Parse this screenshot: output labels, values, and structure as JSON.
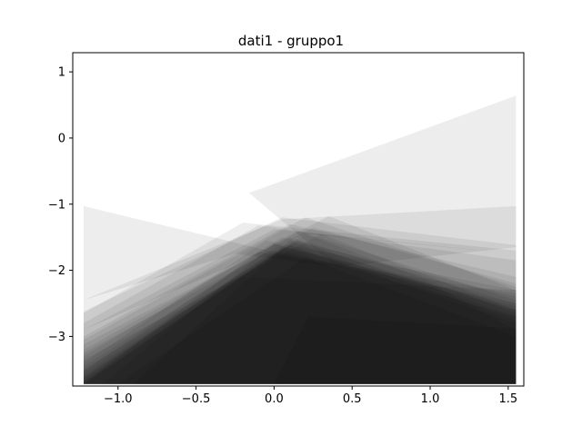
{
  "chart_data": {
    "type": "area",
    "title": "dati1 - gruppo1",
    "xlabel": "",
    "ylabel": "",
    "xlim": [
      -1.29,
      1.6
    ],
    "ylim": [
      -3.75,
      1.29
    ],
    "xticks": [
      -1.0,
      -0.5,
      0.0,
      0.5,
      1.0,
      1.5
    ],
    "xtick_labels": [
      "−1.0",
      "−0.5",
      "0.0",
      "0.5",
      "1.0",
      "1.5"
    ],
    "yticks": [
      1,
      0,
      -1,
      -2,
      -3
    ],
    "ytick_labels": [
      "1",
      "0",
      "−1",
      "−2",
      "−3"
    ],
    "grid": false,
    "fill_color": "#000000",
    "fill_opacity": 0.07,
    "polygons": [
      [
        [
          -0.16,
          -0.83
        ],
        [
          1.55,
          0.64
        ],
        [
          1.55,
          -1.65
        ],
        [
          0.4,
          -1.95
        ]
      ],
      [
        [
          -1.22,
          -1.03
        ],
        [
          0.4,
          -1.95
        ],
        [
          -0.25,
          -1.75
        ],
        [
          -1.22,
          -2.45
        ]
      ],
      [
        [
          -1.22,
          -2.45
        ],
        [
          0.05,
          -1.23
        ],
        [
          1.55,
          -1.03
        ],
        [
          1.55,
          -1.75
        ],
        [
          0.2,
          -1.45
        ],
        [
          -1.22,
          -2.9
        ]
      ],
      [
        [
          -1.22,
          -2.62
        ],
        [
          0.05,
          -1.2
        ],
        [
          1.55,
          -1.62
        ],
        [
          1.55,
          -3.72
        ],
        [
          -1.22,
          -3.72
        ]
      ],
      [
        [
          -1.22,
          -2.65
        ],
        [
          -0.2,
          -1.28
        ],
        [
          1.55,
          -1.7
        ],
        [
          1.55,
          -3.72
        ],
        [
          -1.22,
          -3.72
        ]
      ],
      [
        [
          -1.22,
          -2.8
        ],
        [
          -0.1,
          -1.32
        ],
        [
          1.55,
          -1.85
        ],
        [
          1.55,
          -3.72
        ],
        [
          -1.22,
          -3.72
        ]
      ],
      [
        [
          -1.22,
          -2.9
        ],
        [
          0.0,
          -1.38
        ],
        [
          1.55,
          -1.75
        ],
        [
          1.55,
          -3.72
        ],
        [
          -1.22,
          -3.72
        ]
      ],
      [
        [
          -1.22,
          -3.0
        ],
        [
          0.1,
          -1.3
        ],
        [
          1.55,
          -2.1
        ],
        [
          1.55,
          -3.72
        ],
        [
          -1.22,
          -3.72
        ]
      ],
      [
        [
          -1.22,
          -3.05
        ],
        [
          0.2,
          -1.2
        ],
        [
          1.55,
          -2.25
        ],
        [
          1.55,
          -3.72
        ],
        [
          -1.22,
          -3.72
        ]
      ],
      [
        [
          -1.22,
          -3.12
        ],
        [
          0.35,
          -1.18
        ],
        [
          1.55,
          -2.3
        ],
        [
          1.55,
          -3.72
        ],
        [
          -1.22,
          -3.72
        ]
      ],
      [
        [
          -1.22,
          -3.2
        ],
        [
          0.15,
          -1.4
        ],
        [
          1.55,
          -2.45
        ],
        [
          1.55,
          -3.72
        ],
        [
          -1.22,
          -3.72
        ]
      ],
      [
        [
          -1.22,
          -3.25
        ],
        [
          0.25,
          -1.35
        ],
        [
          1.55,
          -2.2
        ],
        [
          1.55,
          -3.72
        ],
        [
          -1.22,
          -3.72
        ]
      ],
      [
        [
          -1.22,
          -3.3
        ],
        [
          0.05,
          -1.5
        ],
        [
          1.55,
          -2.4
        ],
        [
          1.55,
          -3.72
        ],
        [
          -1.22,
          -3.72
        ]
      ],
      [
        [
          -1.22,
          -3.35
        ],
        [
          0.3,
          -1.45
        ],
        [
          1.55,
          -2.6
        ],
        [
          1.55,
          -3.72
        ],
        [
          -1.22,
          -3.72
        ]
      ],
      [
        [
          -1.22,
          -3.4
        ],
        [
          -0.05,
          -1.55
        ],
        [
          1.55,
          -2.3
        ],
        [
          1.55,
          -3.72
        ],
        [
          -1.22,
          -3.72
        ]
      ],
      [
        [
          -1.22,
          -3.45
        ],
        [
          0.1,
          -1.5
        ],
        [
          1.55,
          -2.5
        ],
        [
          1.55,
          -3.72
        ],
        [
          -1.22,
          -3.72
        ]
      ],
      [
        [
          -1.22,
          -3.5
        ],
        [
          0.2,
          -1.45
        ],
        [
          1.55,
          -2.65
        ],
        [
          1.55,
          -3.72
        ],
        [
          -1.22,
          -3.72
        ]
      ],
      [
        [
          -1.22,
          -3.52
        ],
        [
          0.0,
          -1.6
        ],
        [
          1.55,
          -2.55
        ],
        [
          1.55,
          -3.72
        ],
        [
          -1.22,
          -3.72
        ]
      ],
      [
        [
          -1.22,
          -3.55
        ],
        [
          0.15,
          -1.55
        ],
        [
          1.55,
          -2.7
        ],
        [
          1.55,
          -3.72
        ],
        [
          -1.22,
          -3.72
        ]
      ],
      [
        [
          -1.22,
          -3.6
        ],
        [
          0.05,
          -1.65
        ],
        [
          1.55,
          -2.6
        ],
        [
          1.55,
          -3.72
        ],
        [
          -1.22,
          -3.72
        ]
      ],
      [
        [
          -1.22,
          -3.62
        ],
        [
          0.12,
          -1.58
        ],
        [
          1.55,
          -2.75
        ],
        [
          1.55,
          -3.72
        ],
        [
          -1.22,
          -3.72
        ]
      ],
      [
        [
          -1.22,
          -3.65
        ],
        [
          0.0,
          -1.7
        ],
        [
          1.55,
          -2.5
        ],
        [
          1.55,
          -3.72
        ],
        [
          -1.22,
          -3.72
        ]
      ],
      [
        [
          -1.22,
          -3.68
        ],
        [
          0.1,
          -1.62
        ],
        [
          1.55,
          -2.8
        ],
        [
          1.55,
          -3.72
        ],
        [
          -1.22,
          -3.72
        ]
      ],
      [
        [
          -1.22,
          -3.7
        ],
        [
          -0.1,
          -1.72
        ],
        [
          1.55,
          -2.35
        ],
        [
          1.55,
          -3.72
        ],
        [
          -1.22,
          -3.72
        ]
      ],
      [
        [
          -1.22,
          -3.72
        ],
        [
          0.05,
          -1.68
        ],
        [
          1.55,
          -2.7
        ],
        [
          1.55,
          -3.72
        ]
      ],
      [
        [
          -1.1,
          -3.72
        ],
        [
          0.0,
          -1.6
        ],
        [
          1.0,
          -2.2
        ],
        [
          1.55,
          -2.9
        ],
        [
          1.55,
          -3.72
        ]
      ],
      [
        [
          -0.9,
          -3.72
        ],
        [
          0.1,
          -1.55
        ],
        [
          1.55,
          -2.6
        ],
        [
          1.55,
          -3.72
        ]
      ],
      [
        [
          -1.22,
          -3.72
        ],
        [
          -0.2,
          -2.1
        ],
        [
          1.55,
          -2.3
        ],
        [
          1.55,
          -3.72
        ]
      ],
      [
        [
          -1.0,
          -3.72
        ],
        [
          0.2,
          -1.8
        ],
        [
          1.55,
          -3.0
        ],
        [
          1.55,
          -3.72
        ]
      ],
      [
        [
          0.0,
          -3.72
        ],
        [
          0.22,
          -2.7
        ],
        [
          1.55,
          -2.88
        ],
        [
          1.55,
          -3.72
        ]
      ]
    ]
  }
}
